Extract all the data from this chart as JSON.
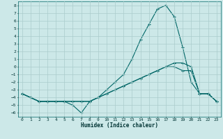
{
  "xlabel": "Humidex (Indice chaleur)",
  "bg_color": "#cce8e8",
  "grid_color": "#aacccc",
  "line_color": "#006666",
  "xlim": [
    -0.5,
    23.5
  ],
  "ylim": [
    -6.5,
    8.5
  ],
  "xticks": [
    0,
    1,
    2,
    3,
    4,
    5,
    6,
    7,
    8,
    9,
    10,
    11,
    12,
    13,
    14,
    15,
    16,
    17,
    18,
    19,
    20,
    21,
    22,
    23
  ],
  "yticks": [
    -6,
    -5,
    -4,
    -3,
    -2,
    -1,
    0,
    1,
    2,
    3,
    4,
    5,
    6,
    7,
    8
  ],
  "line1_x": [
    0,
    1,
    2,
    3,
    4,
    5,
    6,
    7,
    8,
    9,
    10,
    11,
    12,
    13,
    14,
    15,
    16,
    17,
    18,
    19,
    20,
    21,
    22,
    23
  ],
  "line1_y": [
    -3.5,
    -4.0,
    -4.5,
    -4.5,
    -4.5,
    -4.5,
    -5.0,
    -6.0,
    -4.5,
    -4.0,
    -3.0,
    -2.0,
    -1.0,
    1.0,
    3.5,
    5.5,
    7.5,
    8.0,
    6.5,
    2.5,
    -2.0,
    -3.5,
    -3.5,
    -4.5
  ],
  "line2_x": [
    0,
    1,
    2,
    3,
    4,
    5,
    6,
    7,
    8,
    9,
    10,
    11,
    12,
    13,
    14,
    15,
    16,
    17,
    18,
    19,
    20,
    21,
    22,
    23
  ],
  "line2_y": [
    -3.5,
    -4.0,
    -4.5,
    -4.5,
    -4.5,
    -4.5,
    -4.5,
    -4.5,
    -4.5,
    -4.0,
    -3.5,
    -3.0,
    -2.5,
    -2.0,
    -1.5,
    -1.0,
    -0.5,
    0.0,
    0.0,
    -0.5,
    -0.5,
    -3.5,
    -3.5,
    -4.5
  ],
  "line3_x": [
    0,
    1,
    2,
    3,
    4,
    5,
    6,
    7,
    8,
    9,
    10,
    11,
    12,
    13,
    14,
    15,
    16,
    17,
    18,
    19,
    20,
    21,
    22,
    23
  ],
  "line3_y": [
    -3.5,
    -4.0,
    -4.5,
    -4.5,
    -4.5,
    -4.5,
    -4.5,
    -4.5,
    -4.5,
    -4.0,
    -3.5,
    -3.0,
    -2.5,
    -2.0,
    -1.5,
    -1.0,
    -0.5,
    0.0,
    0.5,
    0.5,
    0.0,
    -3.5,
    -3.5,
    -4.5
  ]
}
